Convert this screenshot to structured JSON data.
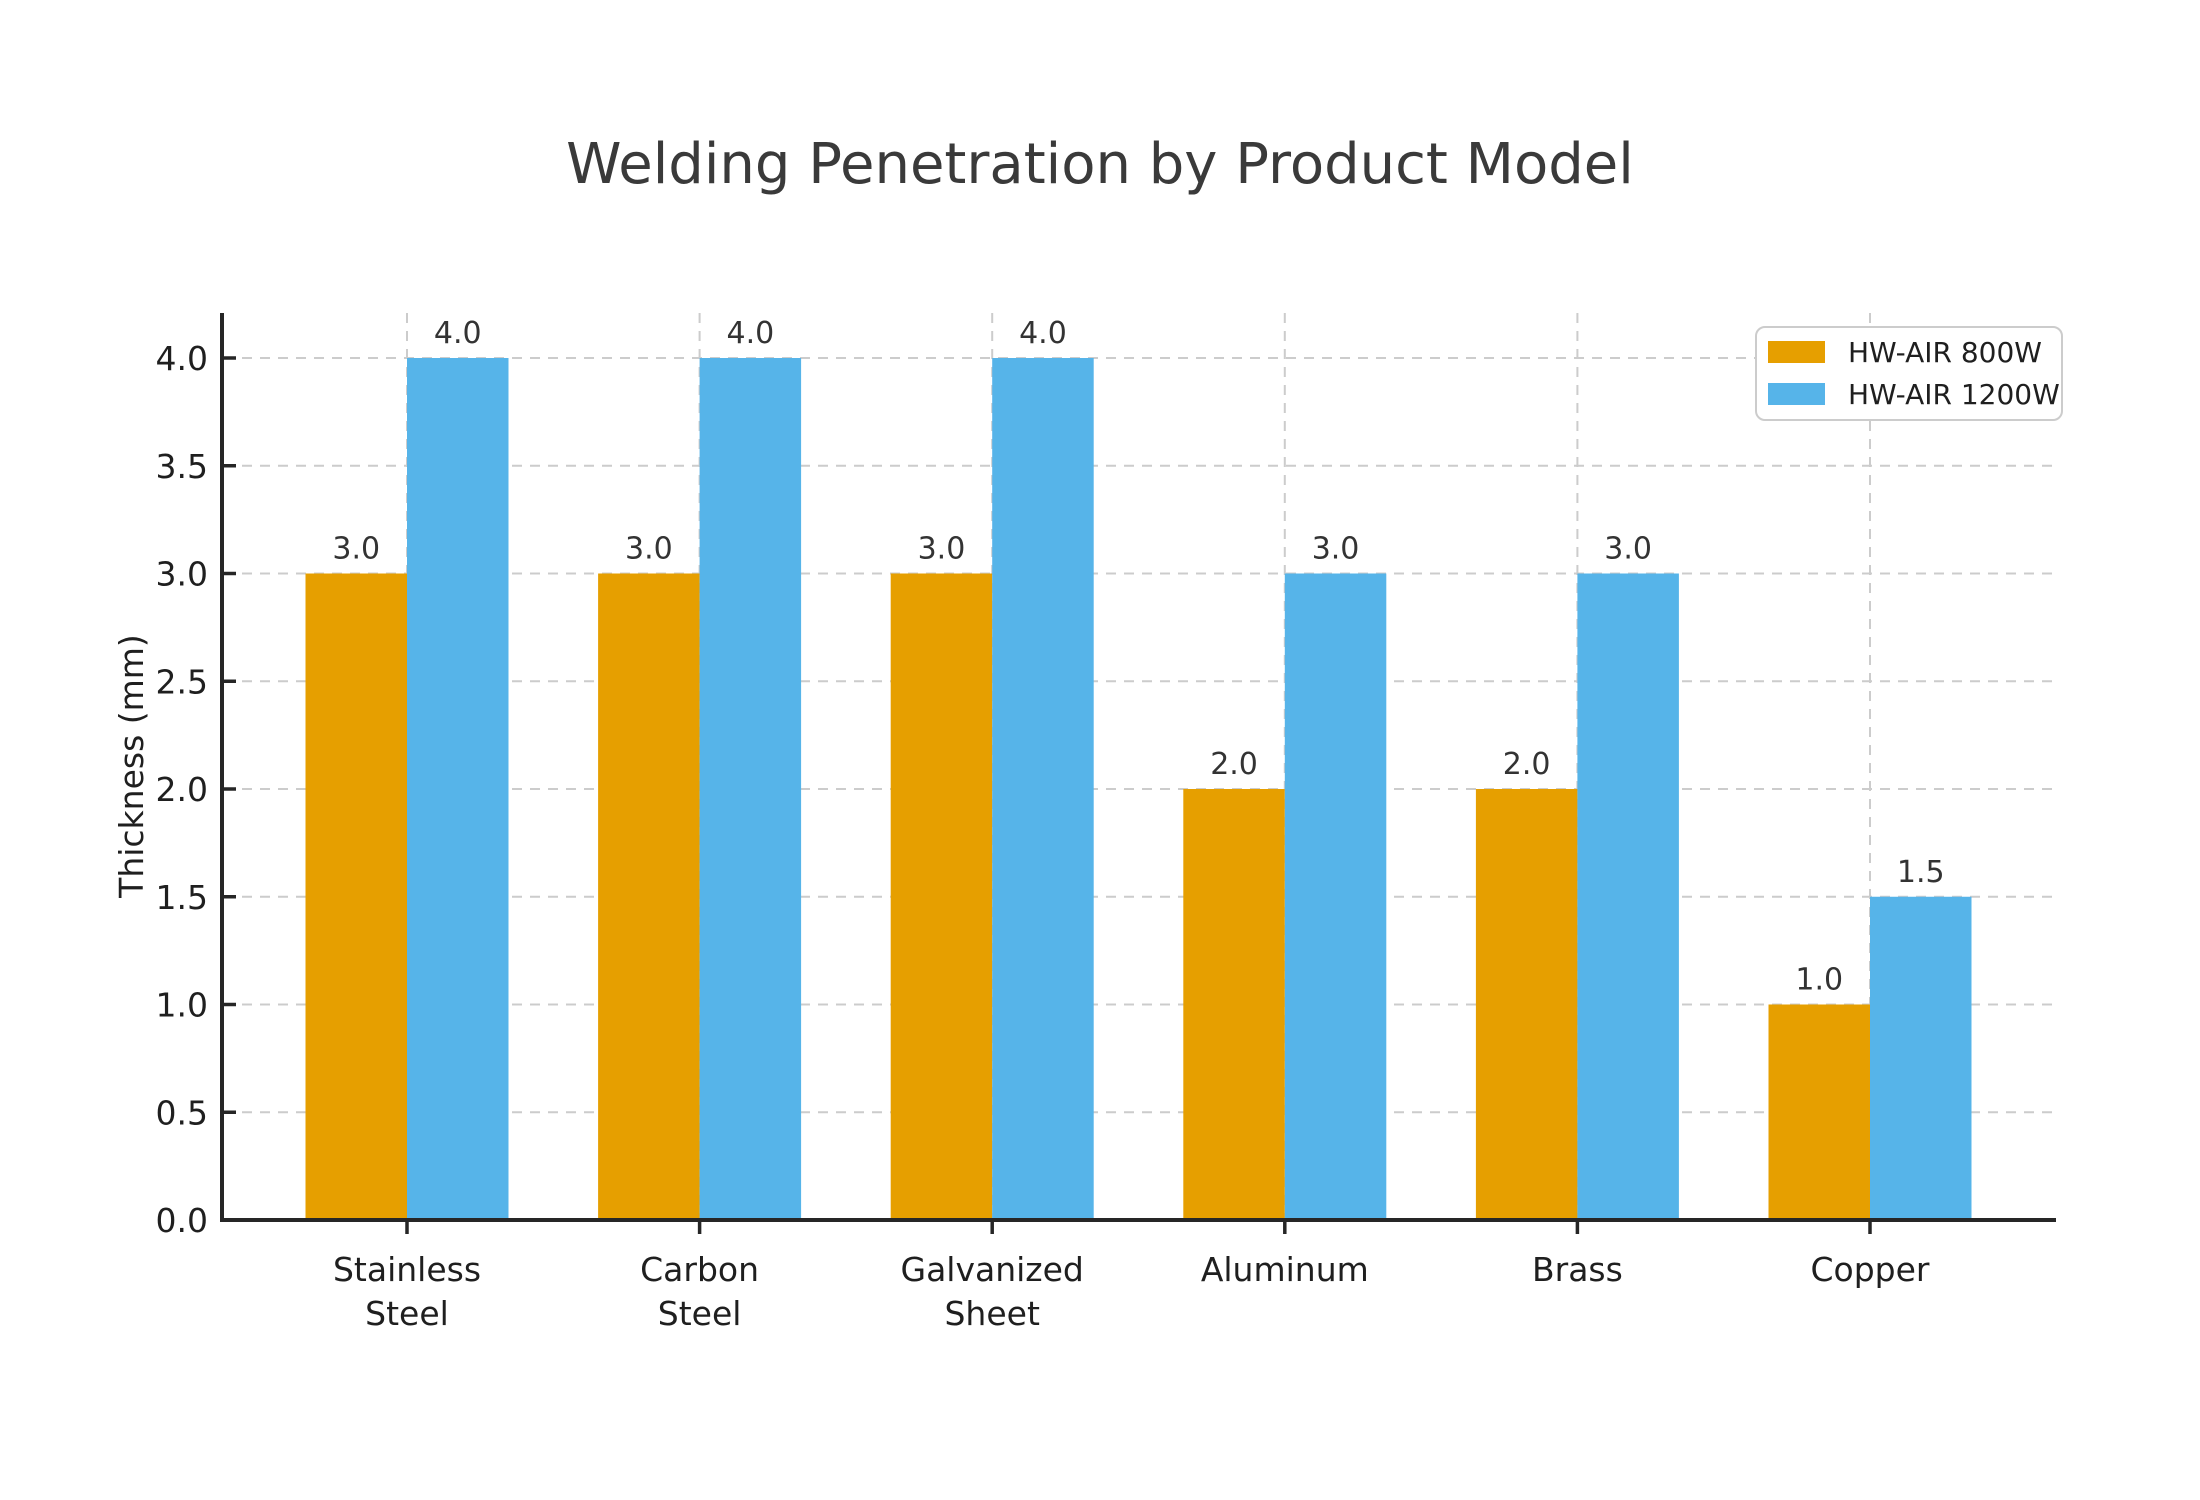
{
  "chart_data": {
    "type": "bar",
    "title": "Welding Penetration by Product Model",
    "xlabel": "",
    "ylabel": "Thickness (mm)",
    "categories": [
      [
        "Stainless",
        "Steel"
      ],
      [
        "Carbon",
        "Steel"
      ],
      [
        "Galvanized",
        "Sheet"
      ],
      [
        "Aluminum"
      ],
      [
        "Brass"
      ],
      [
        "Copper"
      ]
    ],
    "series": [
      {
        "name": "HW-AIR 800W",
        "color": "#E69F00",
        "values": [
          3.0,
          3.0,
          3.0,
          2.0,
          2.0,
          1.0
        ],
        "labels": [
          "3.0",
          "3.0",
          "3.0",
          "2.0",
          "2.0",
          "1.0"
        ]
      },
      {
        "name": "HW-AIR 1200W",
        "color": "#56B4E9",
        "values": [
          4.0,
          4.0,
          4.0,
          3.0,
          3.0,
          1.5
        ],
        "labels": [
          "4.0",
          "4.0",
          "4.0",
          "3.0",
          "3.0",
          "1.5"
        ]
      }
    ],
    "yticks": [
      0.0,
      0.5,
      1.0,
      1.5,
      2.0,
      2.5,
      3.0,
      3.5,
      4.0
    ],
    "ytick_labels": [
      "0.0",
      "0.5",
      "1.0",
      "1.5",
      "2.0",
      "2.5",
      "3.0",
      "3.5",
      "4.0"
    ],
    "ylim": [
      0,
      4.21
    ],
    "grid": true,
    "grid_style": "dashed",
    "legend_position": "upper right",
    "colors": {
      "grid": "#cccccc",
      "axis": "#262626",
      "tick_text": "#1f1f1f",
      "bar_label_text": "#333333",
      "title_text": "#3a3a3a",
      "legend_border": "#cccccc",
      "legend_bg": "#ffffff"
    }
  }
}
